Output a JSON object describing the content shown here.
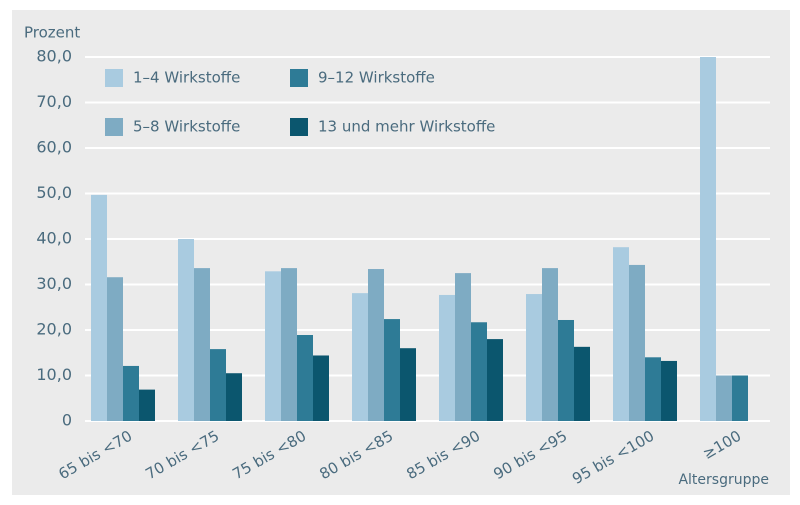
{
  "chart_data": {
    "type": "bar",
    "y_label": "Prozent",
    "x_label": "Altersgruppe",
    "categories": [
      "65 bis <70",
      "70 bis <75",
      "75 bis <80",
      "80 bis <85",
      "85 bis <90",
      "90 bis <95",
      "95 bis <100",
      "≥100"
    ],
    "series": [
      {
        "name": "1–4 Wirkstoffe",
        "color": "#a9cbe0",
        "values": [
          49.7,
          40.0,
          32.9,
          28.1,
          27.7,
          27.9,
          38.2,
          80.0
        ]
      },
      {
        "name": "5–8 Wirkstoffe",
        "color": "#7eabc3",
        "values": [
          31.6,
          33.6,
          33.6,
          33.4,
          32.5,
          33.6,
          34.3,
          10.0
        ]
      },
      {
        "name": "9–12 Wirkstoffe",
        "color": "#2e7b96",
        "values": [
          12.1,
          15.8,
          18.9,
          22.4,
          21.7,
          22.2,
          14.0,
          10.0
        ]
      },
      {
        "name": "13 und mehr Wirkstoffe",
        "color": "#0b566e",
        "values": [
          6.9,
          10.5,
          14.4,
          16.0,
          18.0,
          16.3,
          13.2,
          null
        ]
      }
    ],
    "ylim": [
      0,
      80
    ],
    "yticks": [
      0,
      {
        "value": 10,
        "label": "10,0"
      },
      {
        "value": 20,
        "label": "20,0"
      },
      {
        "value": 30,
        "label": "30,0"
      },
      {
        "value": 40,
        "label": "40,0"
      },
      {
        "value": 50,
        "label": "50,0"
      },
      {
        "value": 60,
        "label": "60,0"
      },
      {
        "value": 70,
        "label": "70,0"
      },
      {
        "value": 80,
        "label": "80,0"
      }
    ],
    "grid": true
  }
}
